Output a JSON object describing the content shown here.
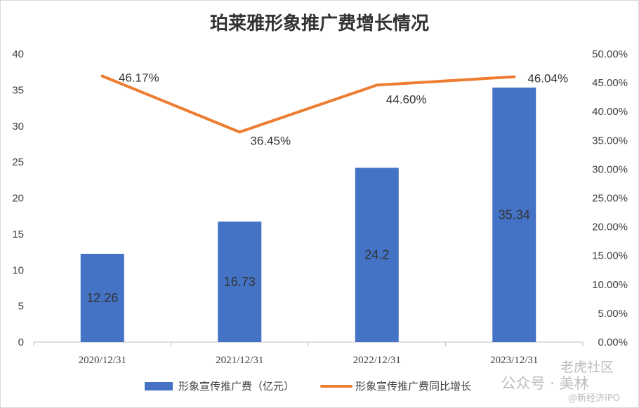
{
  "chart_data": {
    "type": "bar+line",
    "title": "珀莱雅形象推广费增长情况",
    "categories": [
      "2020/12/31",
      "2021/12/31",
      "2022/12/31",
      "2023/12/31"
    ],
    "series": [
      {
        "name": "形象宣传推广费（亿元）",
        "type": "bar",
        "axis": "left",
        "values": [
          12.26,
          16.73,
          24.2,
          35.34
        ],
        "labels": [
          "12.26",
          "16.73",
          "24.2",
          "35.34"
        ],
        "color": "#4472C4"
      },
      {
        "name": "形象宣传推广费同比增长",
        "type": "line",
        "axis": "right",
        "values": [
          46.17,
          36.45,
          44.6,
          46.04
        ],
        "labels": [
          "46.17%",
          "36.45%",
          "44.60%",
          "46.04%"
        ],
        "color": "#ED7D31"
      }
    ],
    "y_left": {
      "min": 0,
      "max": 40,
      "ticks": [
        "0",
        "5",
        "10",
        "15",
        "20",
        "25",
        "30",
        "35",
        "40"
      ]
    },
    "y_right": {
      "min": 0,
      "max": 50,
      "ticks": [
        "0.00%",
        "5.00%",
        "10.00%",
        "15.00%",
        "20.00%",
        "25.00%",
        "30.00%",
        "35.00%",
        "40.00%",
        "45.00%",
        "50.00%"
      ]
    },
    "grid": false,
    "legend_position": "bottom"
  },
  "watermarks": {
    "top": "老虎社区",
    "middle": "公众号 · 美林",
    "bottom": "@新经济IPO"
  }
}
